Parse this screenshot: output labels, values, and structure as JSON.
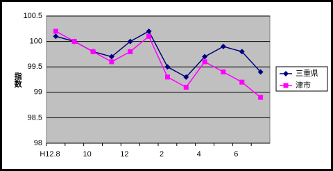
{
  "chart_data": {
    "type": "line",
    "y_label": "指数",
    "categories": [
      "H12.8",
      null,
      "10",
      null,
      "12",
      null,
      "2",
      null,
      "4",
      null,
      "6",
      null
    ],
    "series": [
      {
        "name": "三重県",
        "color": "#000080",
        "marker": "diamond",
        "values": [
          100.1,
          100.0,
          99.8,
          99.7,
          100.0,
          100.2,
          99.5,
          99.3,
          99.7,
          99.9,
          99.8,
          99.4
        ]
      },
      {
        "name": "津市",
        "color": "#ff00ff",
        "marker": "square",
        "values": [
          100.2,
          100.0,
          99.8,
          99.6,
          99.8,
          100.1,
          99.3,
          99.1,
          99.6,
          99.4,
          99.2,
          98.9
        ]
      }
    ],
    "ylim": [
      98,
      100.5
    ],
    "yticks": [
      98,
      98.5,
      99,
      99.5,
      100,
      100.5
    ],
    "grid": true,
    "plot_background": "#c0c0c0",
    "legend": "right"
  }
}
